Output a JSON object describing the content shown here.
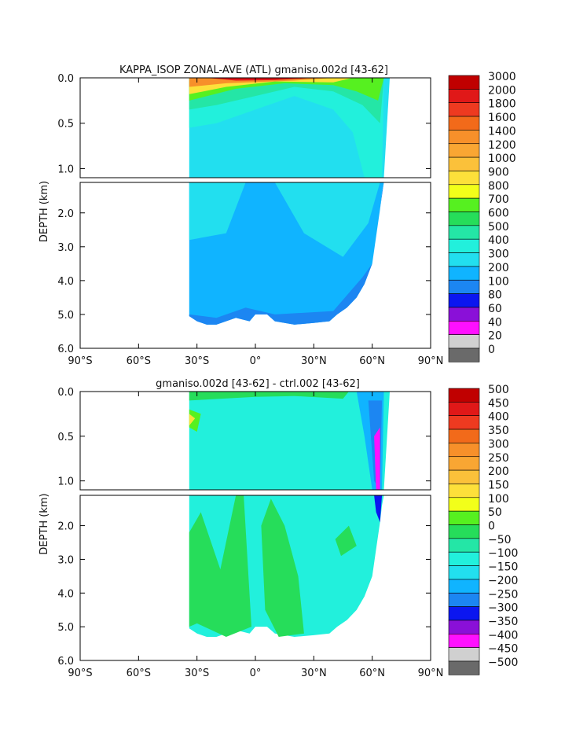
{
  "chart_data": [
    {
      "type": "heatmap",
      "title": "KAPPA_ISOP ZONAL-AVE (ATL) gmaniso.002d [43-62]",
      "ylabel": "DEPTH (km)",
      "x_ticks": [
        "90°S",
        "60°S",
        "30°S",
        "0°",
        "30°N",
        "60°N",
        "90°N"
      ],
      "xlim": [
        -90,
        90
      ],
      "y_ticks_upper": [
        "0.0",
        "0.5",
        "1.0"
      ],
      "y_ticks_lower": [
        "2.0",
        "3.0",
        "4.0",
        "5.0",
        "6.0"
      ],
      "ylim_upper": [
        0,
        1.1
      ],
      "ylim_lower": [
        1.1,
        6.0
      ],
      "colorbar_levels": [
        "3000",
        "2000",
        "1800",
        "1600",
        "1400",
        "1200",
        "1000",
        "900",
        "800",
        "700",
        "600",
        "500",
        "400",
        "300",
        "200",
        "100",
        "80",
        "60",
        "40",
        "20",
        "0"
      ],
      "colorbar_colors": [
        "#c00000",
        "#e01818",
        "#ee3a20",
        "#f26a1a",
        "#f7902a",
        "#f9a633",
        "#fbc13a",
        "#fde03a",
        "#f2ff1a",
        "#56f020",
        "#26dd5a",
        "#24e6a6",
        "#22f0dc",
        "#22dfef",
        "#10b4ff",
        "#1c86f2",
        "#0b16f0",
        "#8a10d8",
        "#ff10ff",
        "#d0d0d0",
        "#6a6a6a"
      ],
      "colorbar_side": "right"
    },
    {
      "type": "heatmap",
      "title": "gmaniso.002d [43-62] - ctrl.002 [43-62]",
      "ylabel": "DEPTH (km)",
      "x_ticks": [
        "90°S",
        "60°S",
        "30°S",
        "0°",
        "30°N",
        "60°N",
        "90°N"
      ],
      "xlim": [
        -90,
        90
      ],
      "y_ticks_upper": [
        "0.0",
        "0.5",
        "1.0"
      ],
      "y_ticks_lower": [
        "2.0",
        "3.0",
        "4.0",
        "5.0",
        "6.0"
      ],
      "ylim_upper": [
        0,
        1.1
      ],
      "ylim_lower": [
        1.1,
        6.0
      ],
      "colorbar_levels": [
        "500",
        "450",
        "400",
        "350",
        "300",
        "250",
        "200",
        "150",
        "100",
        "50",
        "0",
        "−50",
        "−100",
        "−150",
        "−200",
        "−250",
        "−300",
        "−350",
        "−400",
        "−450",
        "−500"
      ],
      "colorbar_colors": [
        "#c00000",
        "#e01818",
        "#ee3a20",
        "#f26a1a",
        "#f7902a",
        "#f9a633",
        "#fbc13a",
        "#fde03a",
        "#f2ff1a",
        "#56f020",
        "#26dd5a",
        "#24e6a6",
        "#22f0dc",
        "#22dfef",
        "#10b4ff",
        "#1c86f2",
        "#0b16f0",
        "#8a10d8",
        "#ff10ff",
        "#d0d0d0",
        "#6a6a6a"
      ],
      "colorbar_side": "right"
    }
  ]
}
